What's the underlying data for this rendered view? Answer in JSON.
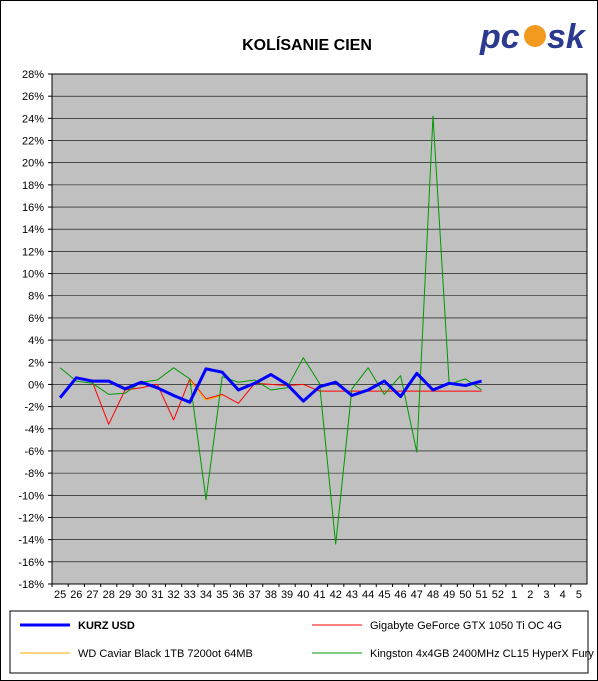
{
  "chart_data": {
    "type": "line",
    "title": "KOLÍSANIE CIEN",
    "categories": [
      "25",
      "26",
      "27",
      "28",
      "29",
      "30",
      "31",
      "32",
      "33",
      "34",
      "35",
      "36",
      "37",
      "38",
      "39",
      "40",
      "41",
      "42",
      "43",
      "44",
      "45",
      "46",
      "47",
      "48",
      "49",
      "50",
      "51",
      "52",
      "1",
      "2",
      "3",
      "4",
      "5"
    ],
    "ylim": [
      -18,
      28
    ],
    "ytick_step": 2,
    "y_unit": "%",
    "grid": true,
    "legend_position": "bottom",
    "series": [
      {
        "name": "KURZ USD",
        "color": "#0000ff",
        "width": 3,
        "values": [
          -1.2,
          0.6,
          0.3,
          0.3,
          -0.4,
          0.2,
          -0.3,
          -1.0,
          -1.6,
          1.4,
          1.1,
          -0.5,
          0.1,
          0.9,
          0.0,
          -1.5,
          -0.2,
          0.2,
          -1.0,
          -0.5,
          0.3,
          -1.1,
          1.0,
          -0.5,
          0.1,
          -0.1,
          0.3,
          null,
          null,
          null,
          null,
          null,
          null
        ]
      },
      {
        "name": "Gigabyte GeForce GTX 1050 Ti OC 4G",
        "color": "#ff0000",
        "width": 1,
        "values": [
          null,
          null,
          0.2,
          -3.6,
          -0.5,
          -0.3,
          0.0,
          -3.2,
          0.5,
          -1.3,
          -0.9,
          -1.7,
          0.1,
          0.0,
          -0.1,
          0.0,
          -0.6,
          -0.6,
          -0.6,
          -0.6,
          -0.6,
          -0.6,
          -0.6,
          -0.6,
          -0.6,
          -0.6,
          -0.6,
          null,
          null,
          null,
          null,
          null,
          null
        ]
      },
      {
        "name": "WD Caviar Black 1TB 7200ot 64MB",
        "color": "#ffa500",
        "width": 1,
        "values": [
          null,
          null,
          null,
          null,
          null,
          null,
          null,
          null,
          0.4,
          -1.4,
          -1.0,
          null,
          null,
          null,
          null,
          null,
          null,
          null,
          null,
          null,
          null,
          null,
          null,
          null,
          null,
          null,
          null,
          null,
          null,
          null,
          null,
          null,
          null
        ]
      },
      {
        "name": "Kingston 4x4GB 2400MHz CL15 HyperX Fury",
        "color": "#009900",
        "width": 1,
        "values": [
          1.5,
          0.3,
          0.1,
          -0.9,
          -0.8,
          0.2,
          0.4,
          1.5,
          0.5,
          -10.4,
          0.7,
          0.2,
          0.4,
          -0.5,
          -0.3,
          2.4,
          0.1,
          -14.4,
          -0.4,
          1.5,
          -0.9,
          0.8,
          -6.1,
          24.2,
          0.0,
          0.5,
          -0.5,
          null,
          null,
          null,
          null,
          null,
          null
        ]
      }
    ]
  },
  "logo": {
    "text": "pcsk"
  },
  "colors": {
    "plot_bg": "#c0c0c0",
    "grid": "#000000",
    "border": "#000000"
  }
}
